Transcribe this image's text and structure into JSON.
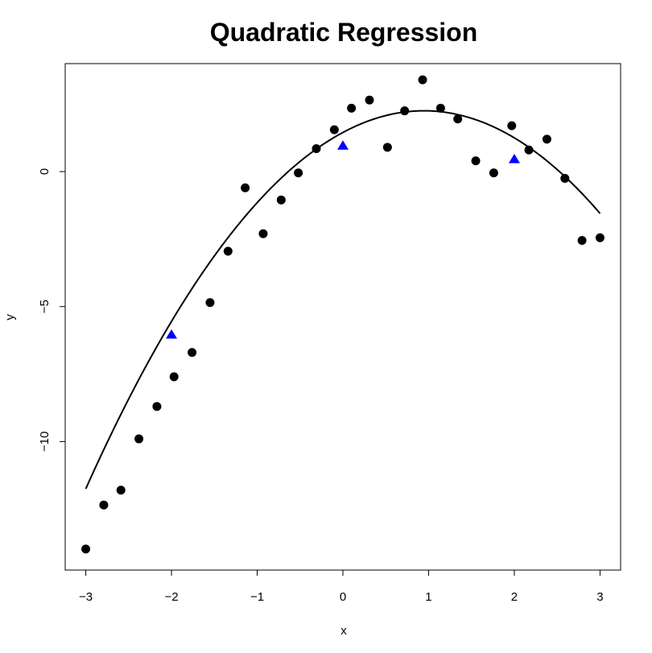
{
  "chart_data": {
    "type": "scatter",
    "title": "Quadratic Regression",
    "xlabel": "x",
    "ylabel": "y",
    "xlim": [
      -3.24,
      3.24
    ],
    "ylim": [
      -14.76,
      4.0
    ],
    "xticks": [
      -3,
      -2,
      -1,
      0,
      1,
      2,
      3
    ],
    "yticks": [
      -10,
      -5,
      0
    ],
    "grid": false,
    "series": [
      {
        "marker": "circle",
        "color": "#000000",
        "x": [
          -3.0,
          -2.79,
          -2.59,
          -2.38,
          -2.17,
          -1.97,
          -1.76,
          -1.55,
          -1.34,
          -1.14,
          -0.93,
          -0.72,
          -0.52,
          -0.31,
          -0.1,
          0.1,
          0.31,
          0.52,
          0.72,
          0.93,
          1.14,
          1.34,
          1.55,
          1.76,
          1.97,
          2.17,
          2.38,
          2.59,
          2.79,
          3.0
        ],
        "y": [
          -13.98,
          -12.35,
          -11.8,
          -9.9,
          -8.7,
          -7.6,
          -6.7,
          -4.85,
          -2.95,
          -0.6,
          -2.3,
          -1.05,
          -0.05,
          0.85,
          1.55,
          2.35,
          2.65,
          0.9,
          2.25,
          3.4,
          2.35,
          1.95,
          0.4,
          -0.05,
          1.7,
          0.8,
          1.2,
          -0.25,
          -2.55,
          -2.45
        ]
      },
      {
        "marker": "triangle",
        "color": "#0000ff",
        "x": [
          -2.0,
          0.0,
          2.0
        ],
        "y": [
          -6.05,
          0.95,
          0.45
        ]
      }
    ],
    "fit": {
      "type": "quadratic",
      "color": "#000000",
      "coefficients": {
        "a": -0.9,
        "b": 1.7,
        "c": 1.45
      },
      "x_range": [
        -3.0,
        3.0
      ]
    }
  }
}
